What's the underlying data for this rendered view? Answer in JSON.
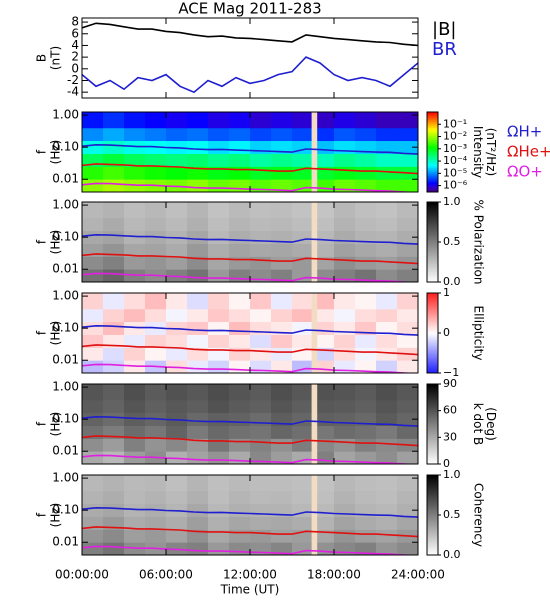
{
  "chart_data": [
    {
      "type": "line",
      "title": "ACE Mag 2011-283",
      "ylabel": [
        "B",
        "(nT)"
      ],
      "xlim": [
        0,
        24
      ],
      "ylim": [
        -5,
        8.7
      ],
      "yticks": [
        -4,
        -2,
        0,
        2,
        4,
        6,
        8
      ],
      "x": [
        0,
        1,
        2,
        3,
        4,
        5,
        6,
        7,
        8,
        9,
        10,
        11,
        12,
        13,
        14,
        15,
        16,
        17,
        18,
        19,
        20,
        21,
        22,
        23,
        24
      ],
      "series": [
        {
          "name": "|B|",
          "color": "#000000",
          "values": [
            7.0,
            7.8,
            7.6,
            7.2,
            6.8,
            6.8,
            6.4,
            6.2,
            5.8,
            5.5,
            5.6,
            5.3,
            5.2,
            5.0,
            4.8,
            4.6,
            5.8,
            5.5,
            5.2,
            5.0,
            4.8,
            4.6,
            4.5,
            4.2,
            4.0
          ]
        },
        {
          "name": "BR",
          "color": "#1f1fd0",
          "values": [
            -1,
            -3,
            -2,
            -3.5,
            -1.5,
            -2,
            -1,
            -3,
            -4,
            -2,
            -3,
            -1.5,
            -2.5,
            -2,
            -1,
            -0.5,
            2,
            1,
            -1,
            -2,
            -1.5,
            -2,
            -3,
            -1,
            1
          ]
        }
      ]
    },
    {
      "type": "heatmap",
      "ylabel": [
        "f",
        "(Hz)"
      ],
      "zlabel": [
        "Intensity",
        "(nT²/Hz)"
      ],
      "colormap": "rainbow",
      "ylog": true,
      "zlog": true,
      "xlim": [
        0,
        24
      ],
      "ylim": [
        0.004,
        1.25
      ],
      "zlim": [
        3e-07,
        1
      ],
      "yticks": [
        0.01,
        {
          "value": 0.1,
          "label": "0.10"
        },
        {
          "value": 1,
          "label": "1.00"
        }
      ],
      "zticks": [
        {
          "value": 0.1,
          "label": "10⁻¹"
        },
        {
          "value": 0.01,
          "label": "10⁻²"
        },
        {
          "value": 0.001,
          "label": "10⁻³"
        },
        {
          "value": 0.0001,
          "label": "10⁻⁴"
        },
        {
          "value": 1e-05,
          "label": "10⁻⁵"
        },
        {
          "value": 1e-06,
          "label": "10⁻⁶"
        }
      ],
      "xbins": [
        0,
        1.5,
        3,
        4.5,
        6,
        7.5,
        9,
        10.5,
        12,
        13.5,
        15,
        16.5,
        18,
        19.5,
        21,
        22.5,
        24
      ],
      "ybins": [
        0.004,
        0.01,
        0.025,
        0.063,
        0.16,
        0.4,
        1.25
      ],
      "gap": [
        16.4,
        16.8
      ],
      "z": [
        [
          0.008,
          0.012,
          0.009,
          0.007,
          0.006,
          0.008,
          0.005,
          0.006,
          0.004,
          0.005,
          0.004,
          0.003,
          0.005,
          0.004,
          0.003,
          0.003
        ],
        [
          0.002,
          0.003,
          0.002,
          0.0015,
          0.0012,
          0.0015,
          0.001,
          0.0012,
          0.0008,
          0.001,
          0.0008,
          0.0007,
          0.001,
          0.0008,
          0.0006,
          0.0006
        ],
        [
          0.0004,
          0.0006,
          0.0004,
          0.0003,
          0.00025,
          0.0003,
          0.0002,
          0.00025,
          0.00015,
          0.0002,
          0.00015,
          0.00012,
          0.0002,
          0.00015,
          0.0001,
          0.0001
        ],
        [
          6e-05,
          9e-05,
          6e-05,
          5e-05,
          4e-05,
          5e-05,
          3e-05,
          4e-05,
          2.5e-05,
          3e-05,
          2.5e-05,
          2e-05,
          3e-05,
          2.5e-05,
          2e-05,
          2e-05
        ],
        [
          1e-05,
          1.5e-05,
          1e-05,
          8e-06,
          6e-06,
          7e-06,
          5e-06,
          6e-06,
          4e-06,
          5e-06,
          4e-06,
          3e-06,
          5e-06,
          4e-06,
          3e-06,
          3e-06
        ],
        [
          2e-06,
          3e-06,
          2e-06,
          1.5e-06,
          1.2e-06,
          1.5e-06,
          1e-06,
          1.2e-06,
          8e-07,
          1e-06,
          8e-07,
          7e-07,
          1e-06,
          8e-07,
          6e-07,
          6e-07
        ]
      ],
      "x": [
        0,
        1,
        2,
        3,
        4,
        5,
        6,
        7,
        8,
        9,
        10,
        11,
        12,
        13,
        14,
        15,
        16,
        17,
        18,
        19,
        20,
        21,
        22,
        23,
        24
      ],
      "series": [
        {
          "name": "ΩH+",
          "color": "#1f1fd0",
          "values": [
            0.107,
            0.119,
            0.116,
            0.11,
            0.104,
            0.104,
            0.098,
            0.095,
            0.088,
            0.084,
            0.085,
            0.081,
            0.079,
            0.076,
            0.073,
            0.07,
            0.088,
            0.084,
            0.079,
            0.076,
            0.073,
            0.07,
            0.069,
            0.064,
            0.061
          ]
        },
        {
          "name": "ΩHe+",
          "color": "#e01010",
          "values": [
            0.027,
            0.03,
            0.029,
            0.028,
            0.026,
            0.026,
            0.025,
            0.024,
            0.022,
            0.021,
            0.021,
            0.02,
            0.02,
            0.019,
            0.018,
            0.018,
            0.022,
            0.021,
            0.02,
            0.019,
            0.018,
            0.018,
            0.017,
            0.016,
            0.015
          ]
        },
        {
          "name": "ΩO+",
          "color": "#e020e0",
          "values": [
            0.0067,
            0.0074,
            0.0073,
            0.0069,
            0.0065,
            0.0065,
            0.0061,
            0.0059,
            0.0055,
            0.0053,
            0.0053,
            0.0051,
            0.0049,
            0.0048,
            0.0046,
            0.0044,
            0.0055,
            0.0053,
            0.0049,
            0.0048,
            0.0046,
            0.0044,
            0.0043,
            0.004,
            0.0038
          ]
        }
      ]
    },
    {
      "type": "heatmap",
      "ylabel": [
        "f",
        "(Hz)"
      ],
      "zlabel": [
        "% Polarization"
      ],
      "colormap": "gray",
      "ylog": true,
      "xlim": [
        0,
        24
      ],
      "ylim": [
        0.004,
        1.25
      ],
      "zlim": [
        0,
        1
      ],
      "yticks": [
        0.01,
        {
          "value": 0.1,
          "label": "0.10"
        },
        {
          "value": 1,
          "label": "1.00"
        }
      ],
      "zticks": [
        {
          "value": 0,
          "label": "0.0"
        },
        0.5,
        {
          "value": 1,
          "label": "1.0"
        }
      ],
      "xbins": [
        0,
        1.5,
        3,
        4.5,
        6,
        7.5,
        9,
        10.5,
        12,
        13.5,
        15,
        16.5,
        18,
        19.5,
        21,
        22.5,
        24
      ],
      "ybins": [
        0.004,
        0.01,
        0.025,
        0.063,
        0.16,
        0.4,
        1.25
      ],
      "gap": [
        16.4,
        16.8
      ],
      "z": [
        [
          0.55,
          0.6,
          0.5,
          0.45,
          0.5,
          0.55,
          0.4,
          0.5,
          0.45,
          0.5,
          0.4,
          0.45,
          0.5,
          0.55,
          0.45,
          0.5
        ],
        [
          0.45,
          0.5,
          0.4,
          0.42,
          0.38,
          0.45,
          0.35,
          0.4,
          0.42,
          0.38,
          0.4,
          0.36,
          0.44,
          0.4,
          0.38,
          0.42
        ],
        [
          0.38,
          0.42,
          0.35,
          0.36,
          0.33,
          0.4,
          0.32,
          0.36,
          0.34,
          0.35,
          0.33,
          0.3,
          0.37,
          0.34,
          0.32,
          0.36
        ],
        [
          0.34,
          0.36,
          0.3,
          0.33,
          0.3,
          0.35,
          0.28,
          0.32,
          0.3,
          0.31,
          0.29,
          0.28,
          0.33,
          0.3,
          0.29,
          0.32
        ],
        [
          0.3,
          0.33,
          0.28,
          0.3,
          0.27,
          0.31,
          0.26,
          0.29,
          0.27,
          0.28,
          0.26,
          0.25,
          0.3,
          0.27,
          0.26,
          0.29
        ],
        [
          0.28,
          0.3,
          0.26,
          0.28,
          0.25,
          0.29,
          0.24,
          0.27,
          0.25,
          0.26,
          0.24,
          0.23,
          0.28,
          0.25,
          0.24,
          0.27
        ]
      ]
    },
    {
      "type": "heatmap",
      "ylabel": [
        "f",
        "(Hz)"
      ],
      "zlabel": [
        "Ellipticity"
      ],
      "colormap": "bwr",
      "ylog": true,
      "xlim": [
        0,
        24
      ],
      "ylim": [
        0.004,
        1.25
      ],
      "zlim": [
        -1,
        1
      ],
      "yticks": [
        0.01,
        {
          "value": 0.1,
          "label": "0.10"
        },
        {
          "value": 1,
          "label": "1.00"
        }
      ],
      "zticks": [
        {
          "value": -1,
          "label": "−1"
        },
        0,
        1
      ],
      "xbins": [
        0,
        1.5,
        3,
        4.5,
        6,
        7.5,
        9,
        10.5,
        12,
        13.5,
        15,
        16.5,
        18,
        19.5,
        21,
        22.5,
        24
      ],
      "ybins": [
        0.004,
        0.01,
        0.025,
        0.063,
        0.16,
        0.4,
        1.25
      ],
      "gap": [
        16.4,
        16.8
      ],
      "z": [
        [
          -0.3,
          -0.2,
          0.1,
          -0.25,
          0.15,
          -0.1,
          -0.2,
          0.05,
          -0.15,
          0.1,
          -0.3,
          0.2,
          -0.1,
          0.05,
          -0.2,
          0.1
        ],
        [
          0.1,
          -0.15,
          0.2,
          0.05,
          -0.1,
          0.15,
          -0.05,
          0.2,
          0.1,
          -0.1,
          0.05,
          -0.2,
          0.15,
          -0.05,
          0.1,
          0.2
        ],
        [
          0.25,
          0.1,
          -0.1,
          0.2,
          0.15,
          -0.05,
          0.2,
          0.1,
          -0.15,
          0.25,
          0.1,
          0.05,
          0.2,
          -0.1,
          0.15,
          0.05
        ],
        [
          0.15,
          0.3,
          0.1,
          -0.1,
          0.2,
          0.25,
          0.05,
          0.3,
          0.15,
          0.1,
          -0.05,
          0.2,
          0.1,
          0.25,
          0.05,
          0.15
        ],
        [
          -0.1,
          0.2,
          0.3,
          0.15,
          -0.05,
          0.1,
          0.25,
          0.15,
          0.05,
          0.2,
          0.3,
          0.1,
          -0.05,
          0.15,
          0.2,
          0.1
        ],
        [
          0.2,
          -0.1,
          0.15,
          0.3,
          0.1,
          -0.15,
          0.2,
          0.05,
          0.25,
          -0.1,
          0.15,
          0.3,
          0.1,
          0.05,
          -0.1,
          0.2
        ]
      ]
    },
    {
      "type": "heatmap",
      "ylabel": [
        "f",
        "(Hz)"
      ],
      "zlabel": [
        "k dot B",
        "(Deg)"
      ],
      "colormap": "gray",
      "ylog": true,
      "xlim": [
        0,
        24
      ],
      "ylim": [
        0.004,
        1.25
      ],
      "zlim": [
        0,
        90
      ],
      "yticks": [
        0.01,
        {
          "value": 0.1,
          "label": "0.10"
        },
        {
          "value": 1,
          "label": "1.00"
        }
      ],
      "zticks": [
        0,
        30,
        60,
        90
      ],
      "xbins": [
        0,
        1.5,
        3,
        4.5,
        6,
        7.5,
        9,
        10.5,
        12,
        13.5,
        15,
        16.5,
        18,
        19.5,
        21,
        22.5,
        24
      ],
      "ybins": [
        0.004,
        0.01,
        0.025,
        0.063,
        0.16,
        0.4,
        1.25
      ],
      "gap": [
        16.4,
        16.8
      ],
      "z": [
        [
          30,
          25,
          35,
          40,
          28,
          33,
          38,
          30,
          42,
          35,
          30,
          45,
          32,
          36,
          40,
          34
        ],
        [
          40,
          35,
          45,
          38,
          42,
          36,
          48,
          40,
          44,
          39,
          46,
          42,
          38,
          45,
          41,
          43
        ],
        [
          50,
          46,
          52,
          48,
          55,
          47,
          53,
          50,
          49,
          54,
          51,
          48,
          52,
          50,
          47,
          53
        ],
        [
          55,
          52,
          57,
          54,
          58,
          53,
          56,
          55,
          52,
          57,
          54,
          56,
          55,
          53,
          58,
          54
        ],
        [
          58,
          55,
          60,
          56,
          59,
          57,
          61,
          58,
          56,
          60,
          57,
          59,
          58,
          56,
          60,
          57
        ],
        [
          60,
          57,
          62,
          58,
          61,
          59,
          63,
          60,
          58,
          62,
          59,
          61,
          60,
          58,
          62,
          59
        ]
      ]
    },
    {
      "type": "heatmap",
      "ylabel": [
        "f",
        "(Hz)"
      ],
      "zlabel": [
        "Coherency"
      ],
      "colormap": "gray",
      "ylog": true,
      "xlim": [
        0,
        24
      ],
      "ylim": [
        0.004,
        1.25
      ],
      "zlim": [
        0,
        1
      ],
      "yticks": [
        0.01,
        {
          "value": 0.1,
          "label": "0.10"
        },
        {
          "value": 1,
          "label": "1.00"
        }
      ],
      "zticks": [
        {
          "value": 0,
          "label": "0.0"
        },
        0.5,
        {
          "value": 1,
          "label": "1.0"
        }
      ],
      "xticks": [
        {
          "value": 0,
          "label": "00:00:00"
        },
        {
          "value": 6,
          "label": "06:00:00"
        },
        {
          "value": 12,
          "label": "12:00:00"
        },
        {
          "value": 18,
          "label": "18:00:00"
        },
        {
          "value": 24,
          "label": "24:00:00"
        }
      ],
      "xlabel": "Time (UT)",
      "xbins": [
        0,
        1.5,
        3,
        4.5,
        6,
        7.5,
        9,
        10.5,
        12,
        13.5,
        15,
        16.5,
        18,
        19.5,
        21,
        22.5,
        24
      ],
      "ybins": [
        0.004,
        0.01,
        0.025,
        0.063,
        0.16,
        0.4,
        1.25
      ],
      "gap": [
        16.4,
        16.8
      ],
      "z": [
        [
          0.5,
          0.55,
          0.45,
          0.42,
          0.48,
          0.5,
          0.4,
          0.46,
          0.44,
          0.48,
          0.4,
          0.43,
          0.47,
          0.5,
          0.42,
          0.46
        ],
        [
          0.42,
          0.46,
          0.38,
          0.4,
          0.36,
          0.43,
          0.34,
          0.39,
          0.4,
          0.37,
          0.38,
          0.35,
          0.42,
          0.38,
          0.36,
          0.4
        ],
        [
          0.36,
          0.4,
          0.33,
          0.35,
          0.32,
          0.38,
          0.31,
          0.35,
          0.33,
          0.34,
          0.32,
          0.3,
          0.36,
          0.33,
          0.31,
          0.35
        ],
        [
          0.33,
          0.35,
          0.3,
          0.32,
          0.29,
          0.34,
          0.28,
          0.31,
          0.3,
          0.3,
          0.28,
          0.27,
          0.32,
          0.29,
          0.28,
          0.31
        ],
        [
          0.3,
          0.32,
          0.28,
          0.3,
          0.27,
          0.31,
          0.26,
          0.29,
          0.27,
          0.28,
          0.26,
          0.25,
          0.3,
          0.27,
          0.26,
          0.29
        ],
        [
          0.28,
          0.3,
          0.27,
          0.28,
          0.25,
          0.29,
          0.25,
          0.27,
          0.26,
          0.26,
          0.25,
          0.24,
          0.28,
          0.26,
          0.25,
          0.27
        ]
      ]
    }
  ]
}
